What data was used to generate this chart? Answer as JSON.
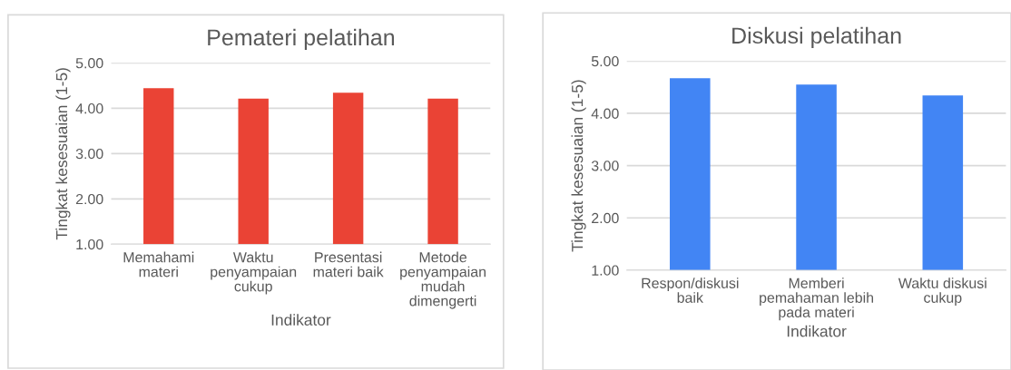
{
  "chart_data": [
    {
      "type": "bar",
      "title": "Pemateri pelatihan",
      "xlabel": "Indikator",
      "ylabel": "Tingkat kesesuaian (1-5)",
      "categories": [
        "Memahami\nmateri",
        "Waktu\npenyampaian\ncukup",
        "Presentasi\nmateri baik",
        "Metode\npenyampaian\nmudah\ndimengerti"
      ],
      "values": [
        4.44,
        4.21,
        4.34,
        4.21
      ],
      "color": "#ea4335",
      "ylim": [
        1,
        5
      ],
      "yticks": [
        {
          "value": 1,
          "label": "1.00"
        },
        {
          "value": 2,
          "label": "2.00"
        },
        {
          "value": 3,
          "label": "3.00"
        },
        {
          "value": 4,
          "label": "4.00"
        },
        {
          "value": 5,
          "label": "5.00"
        }
      ],
      "grid": "y"
    },
    {
      "type": "bar",
      "title": "Diskusi pelatihan",
      "xlabel": "Indikator",
      "ylabel": "Tingkat kesesuaian (1-5)",
      "categories": [
        "Respon/diskusi\nbaik",
        "Memberi\npemahaman lebih\npada materi",
        "Waktu diskusi\ncukup"
      ],
      "values": [
        4.67,
        4.55,
        4.34
      ],
      "color": "#4285f4",
      "ylim": [
        1,
        5
      ],
      "yticks": [
        {
          "value": 1,
          "label": "1.00"
        },
        {
          "value": 2,
          "label": "2.00"
        },
        {
          "value": 3,
          "label": "3.00"
        },
        {
          "value": 4,
          "label": "4.00"
        },
        {
          "value": 5,
          "label": "5.00"
        }
      ],
      "grid": "y"
    }
  ]
}
